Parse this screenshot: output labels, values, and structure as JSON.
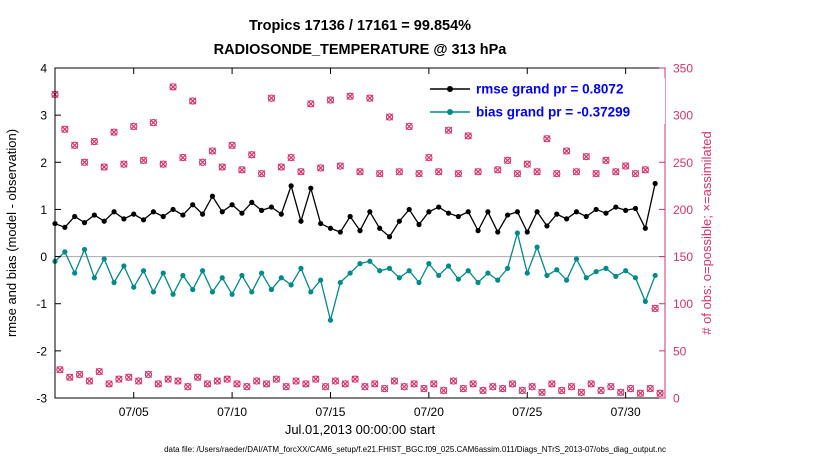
{
  "footer": {
    "data_file_label": "data file: /Users/raeder/DAI/ATM_forcXX/CAM6_setup/f.e21.FHIST_BGC.f09_025.CAM6assim.011/Diags_NTrS_2013-07/obs_diag_output.nc"
  },
  "colors": {
    "rmse": "#000000",
    "bias": "#008b8b",
    "obs": "#d6336c",
    "legend_text": "#0000ff",
    "zero_line": "#b3b3b3",
    "axis": "#000000"
  },
  "chart_data": {
    "type": "line",
    "title": "Tropics 17136 / 17161 = 99.854%",
    "subtitle": "RADIOSONDE_TEMPERATURE @ 313 hPa",
    "xlabel": "Jul.01,2013 00:00:00 start",
    "ylabel_left": "rmse and bias (model - observation)",
    "ylabel_right": "# of obs: o=possible; ×=assimilated",
    "xlim_days": [
      1,
      32
    ],
    "ylim_left": [
      -3,
      4
    ],
    "ylim_right": [
      0,
      350
    ],
    "yticks_left": [
      4,
      3,
      2,
      1,
      0,
      -1,
      -2,
      -3
    ],
    "yticks_right": [
      350,
      300,
      250,
      200,
      150,
      100,
      50,
      0
    ],
    "xticks": [
      {
        "day": 5,
        "label": "07/05"
      },
      {
        "day": 10,
        "label": "07/10"
      },
      {
        "day": 15,
        "label": "07/15"
      },
      {
        "day": 20,
        "label": "07/20"
      },
      {
        "day": 25,
        "label": "07/25"
      },
      {
        "day": 30,
        "label": "07/30"
      }
    ],
    "grid": false,
    "legend_position": "top-right-inside",
    "legend": [
      {
        "series": "rmse",
        "label": "rmse grand pr = 0.8072"
      },
      {
        "series": "bias",
        "label": "bias grand pr = -0.37299"
      }
    ],
    "series": [
      {
        "name": "rmse",
        "axis": "left",
        "style": "line+filled-circle",
        "x_start_day": 1,
        "x_step_days": 0.5,
        "values": [
          0.7,
          0.62,
          0.85,
          0.72,
          0.88,
          0.75,
          0.95,
          0.8,
          0.9,
          0.78,
          0.95,
          0.85,
          1.0,
          0.88,
          1.1,
          0.9,
          1.28,
          0.95,
          1.1,
          0.92,
          1.15,
          0.98,
          1.05,
          0.9,
          1.5,
          0.75,
          1.45,
          0.7,
          0.6,
          0.52,
          0.85,
          0.55,
          0.95,
          0.6,
          0.42,
          0.75,
          1.0,
          0.68,
          0.95,
          1.05,
          0.92,
          0.85,
          0.95,
          0.55,
          0.95,
          0.52,
          0.88,
          0.95,
          0.52,
          0.95,
          0.65,
          0.9,
          0.8,
          0.95,
          0.85,
          1.0,
          0.92,
          1.05,
          0.98,
          1.02,
          0.6,
          1.55
        ]
      },
      {
        "name": "bias",
        "axis": "left",
        "style": "line+filled-circle",
        "x_start_day": 1,
        "x_step_days": 0.5,
        "values": [
          -0.1,
          0.1,
          -0.35,
          0.15,
          -0.45,
          -0.05,
          -0.55,
          -0.2,
          -0.65,
          -0.3,
          -0.75,
          -0.35,
          -0.8,
          -0.4,
          -0.7,
          -0.3,
          -0.75,
          -0.45,
          -0.8,
          -0.4,
          -0.75,
          -0.35,
          -0.7,
          -0.45,
          -0.6,
          -0.25,
          -0.75,
          -0.5,
          -1.35,
          -0.55,
          -0.35,
          -0.15,
          -0.1,
          -0.3,
          -0.25,
          -0.45,
          -0.3,
          -0.55,
          -0.15,
          -0.4,
          -0.2,
          -0.48,
          -0.3,
          -0.55,
          -0.35,
          -0.5,
          -0.25,
          0.5,
          -0.35,
          0.2,
          -0.4,
          -0.28,
          -0.5,
          -0.05,
          -0.45,
          -0.32,
          -0.25,
          -0.42,
          -0.3,
          -0.45,
          -0.95,
          -0.4
        ]
      },
      {
        "name": "obs_counts",
        "axis": "right",
        "style": "scatter: o=possible overlapped by x=assimilated",
        "note": "o (possible) and x (assimilated) markers overlap at this scale; 17136 of 17161 assimilated (99.854%)",
        "x_start_day": 1,
        "x_step_days": 0.25,
        "values": [
          322,
          30,
          285,
          22,
          268,
          25,
          250,
          18,
          272,
          28,
          245,
          15,
          282,
          20,
          248,
          22,
          288,
          18,
          252,
          25,
          292,
          15,
          248,
          20,
          330,
          18,
          255,
          12,
          315,
          22,
          250,
          15,
          262,
          18,
          245,
          20,
          268,
          15,
          242,
          12,
          258,
          18,
          238,
          15,
          318,
          20,
          245,
          12,
          255,
          18,
          240,
          15,
          312,
          20,
          244,
          12,
          316,
          18,
          246,
          15,
          320,
          20,
          240,
          12,
          318,
          15,
          238,
          10,
          298,
          18,
          240,
          12,
          288,
          15,
          238,
          10,
          255,
          15,
          240,
          8,
          284,
          18,
          238,
          10,
          278,
          15,
          240,
          8,
          298,
          12,
          242,
          10,
          252,
          15,
          238,
          8,
          248,
          12,
          240,
          6,
          275,
          15,
          238,
          8,
          262,
          12,
          240,
          6,
          256,
          15,
          238,
          8,
          252,
          12,
          240,
          6,
          246,
          10,
          238,
          5,
          242,
          10,
          95,
          5
        ]
      }
    ]
  }
}
